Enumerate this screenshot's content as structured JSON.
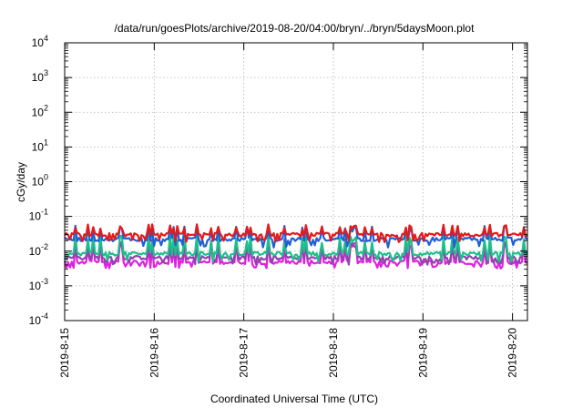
{
  "chart_data": {
    "type": "line",
    "title": "/data/run/goesPlots/archive/2019-08-20/04:00/bryn/../bryn/5daysMoon.plot",
    "xlabel": "Coordinated Universal Time (UTC)",
    "ylabel": "cGy/day",
    "yscale": "log",
    "ylim": [
      0.0001,
      10000
    ],
    "xlim": [
      "2019-08-15T00:00",
      "2019-08-20T04:00"
    ],
    "y_ticks": [
      {
        "value": 0.0001,
        "base": "10",
        "exp": "-4"
      },
      {
        "value": 0.001,
        "base": "10",
        "exp": "-3"
      },
      {
        "value": 0.01,
        "base": "10",
        "exp": "-2"
      },
      {
        "value": 0.1,
        "base": "10",
        "exp": "-1"
      },
      {
        "value": 1,
        "base": "10",
        "exp": "0"
      },
      {
        "value": 10,
        "base": "10",
        "exp": "1"
      },
      {
        "value": 100,
        "base": "10",
        "exp": "2"
      },
      {
        "value": 1000,
        "base": "10",
        "exp": "3"
      },
      {
        "value": 10000,
        "base": "10",
        "exp": "4"
      }
    ],
    "x_ticks": [
      {
        "date": "2019-08-15",
        "label": "2019-8-15"
      },
      {
        "date": "2019-08-16",
        "label": "2019-8-16"
      },
      {
        "date": "2019-08-17",
        "label": "2019-8-17"
      },
      {
        "date": "2019-08-18",
        "label": "2019-8-18"
      },
      {
        "date": "2019-08-19",
        "label": "2019-8-19"
      },
      {
        "date": "2019-08-20",
        "label": "2019-8-20"
      }
    ],
    "grid": true,
    "legend": "none",
    "series": [
      {
        "color": "#e41a1c",
        "base": 0.03,
        "spike_high": 0.06,
        "dip_low": 0.02
      },
      {
        "color": "#1f5fd6",
        "base": 0.022,
        "spike_high": 0.055,
        "dip_low": 0.014
      },
      {
        "color": "#1dbf8a",
        "base": 0.0085,
        "spike_high": 0.03,
        "dip_low": 0.0055
      },
      {
        "color": "#8e44ad",
        "base": 0.0065,
        "spike_high": 0.022,
        "dip_low": 0.0045
      },
      {
        "color": "#e020e0",
        "base": 0.0048,
        "spike_high": 0.02,
        "dip_low": 0.0035
      }
    ]
  }
}
